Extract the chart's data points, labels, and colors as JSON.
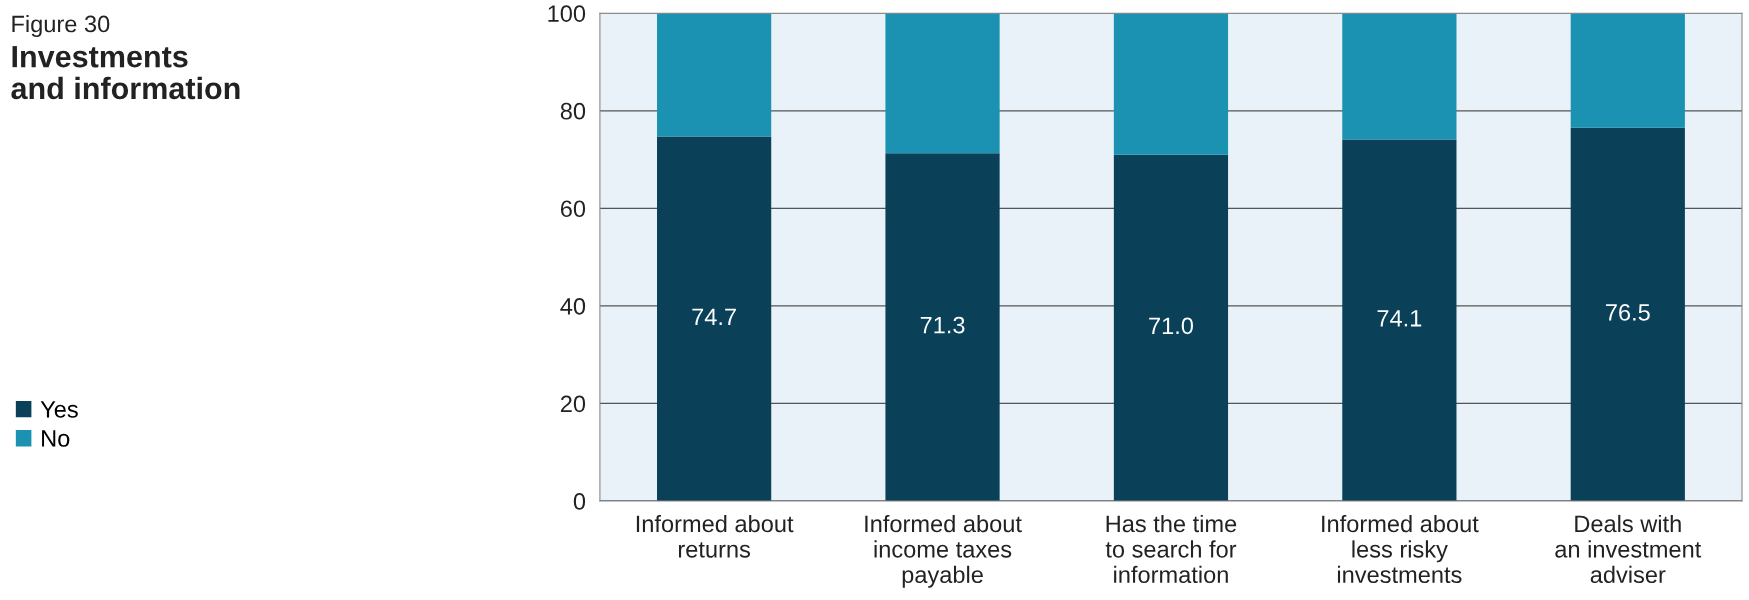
{
  "chart_data": {
    "type": "bar",
    "subtitle": "Figure 30",
    "title": "Investments\nand information",
    "categories": [
      "Informed about\nreturns",
      "Informed about\nincome taxes\npayable",
      "Has the time\nto search for\ninformation",
      "Informed about\nless risky\ninvestments",
      "Deals with\nan investment\nadviser"
    ],
    "series": [
      {
        "name": "Yes",
        "color": "#0a4159",
        "values": [
          74.7,
          71.3,
          71.0,
          74.1,
          76.5
        ],
        "value_labels": [
          "74.7",
          "71.3",
          "71.0",
          "74.1",
          "76.5"
        ]
      },
      {
        "name": "No",
        "color": "#1b92b2",
        "values": [
          25.3,
          28.7,
          29.0,
          25.9,
          23.5
        ]
      }
    ],
    "stacked": true,
    "ylim": [
      0,
      100
    ],
    "yticks": [
      0,
      20,
      40,
      60,
      80,
      100
    ],
    "grid": "y",
    "legend": "bottom left"
  }
}
